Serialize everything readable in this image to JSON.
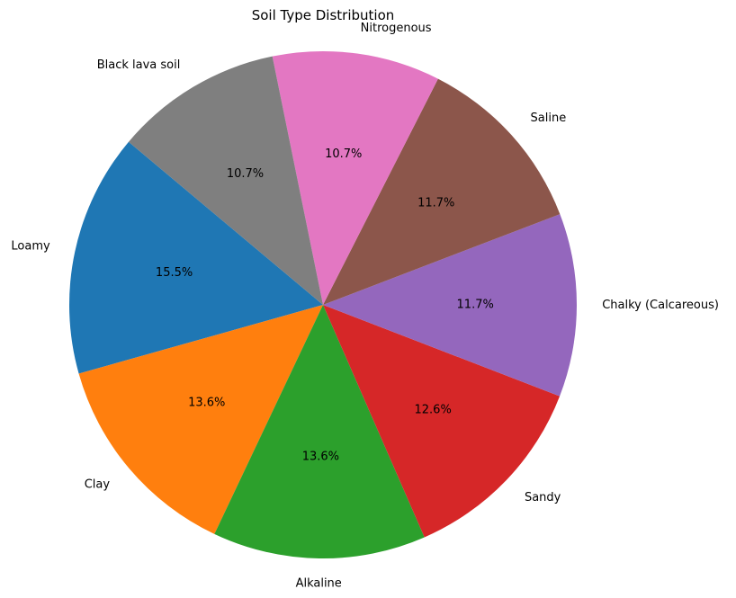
{
  "chart_data": {
    "type": "pie",
    "title": "Soil Type Distribution",
    "categories": [
      "Loamy",
      "Clay",
      "Alkaline",
      "Sandy",
      "Chalky (Calcareous)",
      "Saline",
      "Nitrogenous",
      "Black lava soil"
    ],
    "values": [
      15.5,
      13.6,
      13.6,
      12.6,
      11.7,
      11.7,
      10.7,
      10.7
    ],
    "value_labels": [
      "15.5%",
      "13.6%",
      "13.6%",
      "12.6%",
      "11.7%",
      "11.7%",
      "10.7%",
      "10.7%"
    ],
    "colors": [
      "#1f77b4",
      "#ff7f0e",
      "#2ca02c",
      "#d62728",
      "#9467bd",
      "#8c564b",
      "#e377c2",
      "#7f7f7f"
    ],
    "start_angle_deg": 140,
    "direction": "counterclockwise",
    "legend": "none"
  }
}
